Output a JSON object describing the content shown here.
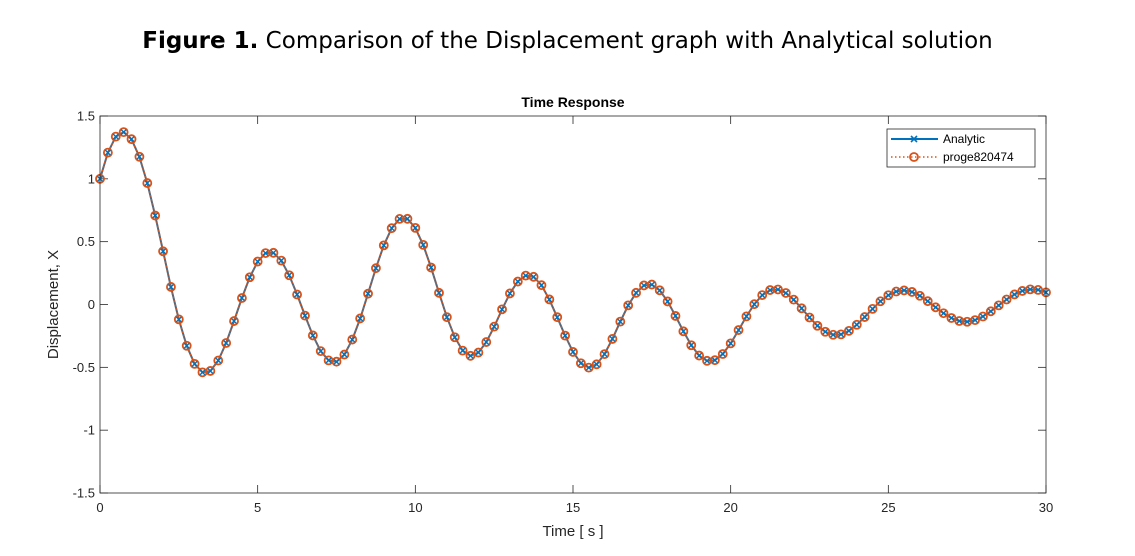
{
  "figure_caption": {
    "label": "Figure 1.",
    "text": " Comparison of the Displacement graph with Analytical solution"
  },
  "chart_data": {
    "type": "line",
    "title": "Time Response",
    "xlabel": "Time [ s ]",
    "ylabel": "Displacement, X",
    "xlim": [
      0,
      30
    ],
    "ylim": [
      -1.5,
      1.5
    ],
    "xticks": [
      0,
      5,
      10,
      15,
      20,
      25,
      30
    ],
    "xtick_labels": [
      "0",
      "5",
      "10",
      "15",
      "20",
      "25",
      "30"
    ],
    "yticks": [
      -1.5,
      -1,
      -0.5,
      0,
      0.5,
      1,
      1.5
    ],
    "ytick_labels": [
      "-1.5",
      "-1",
      "-0.5",
      "0",
      "0.5",
      "1",
      "1.5"
    ],
    "grid": false,
    "legend_position": "top-right",
    "series": [
      {
        "name": "Analytic",
        "color": "#0072BD",
        "style": "solid line with x markers",
        "x": [
          0,
          0.25,
          0.5,
          0.75,
          1,
          1.25,
          1.5,
          1.75,
          2,
          2.25,
          2.5,
          2.75,
          3,
          3.25,
          3.5,
          3.75,
          4,
          4.25,
          4.5,
          4.75,
          5,
          5.25,
          5.5,
          5.75,
          6,
          6.25,
          6.5,
          6.75,
          7,
          7.25,
          7.5,
          7.75,
          8,
          8.25,
          8.5,
          8.75,
          9,
          9.25,
          9.5,
          9.75,
          10,
          10.25,
          10.5,
          10.75,
          11,
          11.25,
          11.5,
          11.75,
          12,
          12.25,
          12.5,
          12.75,
          13,
          13.25,
          13.5,
          13.75,
          14,
          14.25,
          14.5,
          14.75,
          15,
          15.25,
          15.5,
          15.75,
          16,
          16.25,
          16.5,
          16.75,
          17,
          17.25,
          17.5,
          17.75,
          18,
          18.25,
          18.5,
          18.75,
          19,
          19.25,
          19.5,
          19.75,
          20,
          20.25,
          20.5,
          20.75,
          21,
          21.25,
          21.5,
          21.75,
          22,
          22.25,
          22.5,
          22.75,
          23,
          23.25,
          23.5,
          23.75,
          24,
          24.25,
          24.5,
          24.75,
          25,
          25.25,
          25.5,
          25.75,
          26,
          26.25,
          26.5,
          26.75,
          27,
          27.25,
          27.5,
          27.75,
          28,
          28.25,
          28.5,
          28.75,
          29,
          29.25,
          29.5,
          29.75,
          30
        ],
        "y": [
          1.0,
          1.2087,
          1.3358,
          1.3716,
          1.3156,
          1.1756,
          0.9662,
          0.7078,
          0.4234,
          0.1396,
          -0.1183,
          -0.3283,
          -0.4724,
          -0.5399,
          -0.5288,
          -0.4459,
          -0.3064,
          -0.1318,
          0.0515,
          0.2169,
          0.3416,
          0.4091,
          0.4113,
          0.3493,
          0.2327,
          0.0793,
          -0.0886,
          -0.2463,
          -0.3713,
          -0.4449,
          -0.4552,
          -0.3983,
          -0.2792,
          -0.1111,
          0.0862,
          0.2891,
          0.4707,
          0.6073,
          0.6811,
          0.682,
          0.6099,
          0.4744,
          0.294,
          0.0929,
          -0.1008,
          -0.2605,
          -0.3669,
          -0.4082,
          -0.3824,
          -0.2989,
          -0.1763,
          -0.0385,
          0.0881,
          0.1827,
          0.2299,
          0.2202,
          0.1535,
          0.0401,
          -0.1011,
          -0.2477,
          -0.3774,
          -0.4675,
          -0.5023,
          -0.4761,
          -0.3947,
          -0.2739,
          -0.1363,
          -0.0069,
          0.093,
          0.1517,
          0.1585,
          0.1127,
          0.0243,
          -0.0909,
          -0.2134,
          -0.3241,
          -0.4065,
          -0.4481,
          -0.4433,
          -0.3941,
          -0.3094,
          -0.2034,
          -0.0945,
          0.0024,
          0.0747,
          0.1147,
          0.1196,
          0.0918,
          0.0385,
          -0.0304,
          -0.1034,
          -0.1689,
          -0.217,
          -0.241,
          -0.2379,
          -0.2096,
          -0.1612,
          -0.0998,
          -0.0346,
          0.0256,
          0.0734,
          0.1032,
          0.112,
          0.0998,
          0.0694,
          0.0264,
          -0.0224,
          -0.0694,
          -0.1075,
          -0.1312,
          -0.1371,
          -0.1245,
          -0.0955,
          -0.0544,
          -0.007,
          0.04,
          0.08,
          0.108,
          0.1205,
          0.1161,
          0.0962
        ]
      },
      {
        "name": "proge820474",
        "color": "#D95319",
        "style": "dotted line with circle markers",
        "x": [
          0,
          0.25,
          0.5,
          0.75,
          1,
          1.25,
          1.5,
          1.75,
          2,
          2.25,
          2.5,
          2.75,
          3,
          3.25,
          3.5,
          3.75,
          4,
          4.25,
          4.5,
          4.75,
          5,
          5.25,
          5.5,
          5.75,
          6,
          6.25,
          6.5,
          6.75,
          7,
          7.25,
          7.5,
          7.75,
          8,
          8.25,
          8.5,
          8.75,
          9,
          9.25,
          9.5,
          9.75,
          10,
          10.25,
          10.5,
          10.75,
          11,
          11.25,
          11.5,
          11.75,
          12,
          12.25,
          12.5,
          12.75,
          13,
          13.25,
          13.5,
          13.75,
          14,
          14.25,
          14.5,
          14.75,
          15,
          15.25,
          15.5,
          15.75,
          16,
          16.25,
          16.5,
          16.75,
          17,
          17.25,
          17.5,
          17.75,
          18,
          18.25,
          18.5,
          18.75,
          19,
          19.25,
          19.5,
          19.75,
          20,
          20.25,
          20.5,
          20.75,
          21,
          21.25,
          21.5,
          21.75,
          22,
          22.25,
          22.5,
          22.75,
          23,
          23.25,
          23.5,
          23.75,
          24,
          24.25,
          24.5,
          24.75,
          25,
          25.25,
          25.5,
          25.75,
          26,
          26.25,
          26.5,
          26.75,
          27,
          27.25,
          27.5,
          27.75,
          28,
          28.25,
          28.5,
          28.75,
          29,
          29.25,
          29.5,
          29.75,
          30
        ],
        "y": [
          1.0,
          1.2087,
          1.3358,
          1.3716,
          1.3156,
          1.1756,
          0.9662,
          0.7078,
          0.4234,
          0.1396,
          -0.1183,
          -0.3283,
          -0.4724,
          -0.5399,
          -0.5288,
          -0.4459,
          -0.3064,
          -0.1318,
          0.0515,
          0.2169,
          0.3416,
          0.4091,
          0.4113,
          0.3493,
          0.2327,
          0.0793,
          -0.0886,
          -0.2463,
          -0.3713,
          -0.4449,
          -0.4552,
          -0.3983,
          -0.2792,
          -0.1111,
          0.0862,
          0.2891,
          0.4707,
          0.6073,
          0.6811,
          0.682,
          0.6099,
          0.4744,
          0.294,
          0.0929,
          -0.1008,
          -0.2605,
          -0.3669,
          -0.4082,
          -0.3824,
          -0.2989,
          -0.1763,
          -0.0385,
          0.0881,
          0.1827,
          0.2299,
          0.2202,
          0.1535,
          0.0401,
          -0.1011,
          -0.2477,
          -0.3774,
          -0.4675,
          -0.5023,
          -0.4761,
          -0.3947,
          -0.2739,
          -0.1363,
          -0.0069,
          0.093,
          0.1517,
          0.1585,
          0.1127,
          0.0243,
          -0.0909,
          -0.2134,
          -0.3241,
          -0.4065,
          -0.4481,
          -0.4433,
          -0.3941,
          -0.3094,
          -0.2034,
          -0.0945,
          0.0024,
          0.0747,
          0.1147,
          0.1196,
          0.0918,
          0.0385,
          -0.0304,
          -0.1034,
          -0.1689,
          -0.217,
          -0.241,
          -0.2379,
          -0.2096,
          -0.1612,
          -0.0998,
          -0.0346,
          0.0256,
          0.0734,
          0.1032,
          0.112,
          0.0998,
          0.0694,
          0.0264,
          -0.0224,
          -0.0694,
          -0.1075,
          -0.1312,
          -0.1371,
          -0.1245,
          -0.0955,
          -0.0544,
          -0.007,
          0.04,
          0.08,
          0.108,
          0.1205,
          0.1161,
          0.0962
        ]
      }
    ]
  }
}
